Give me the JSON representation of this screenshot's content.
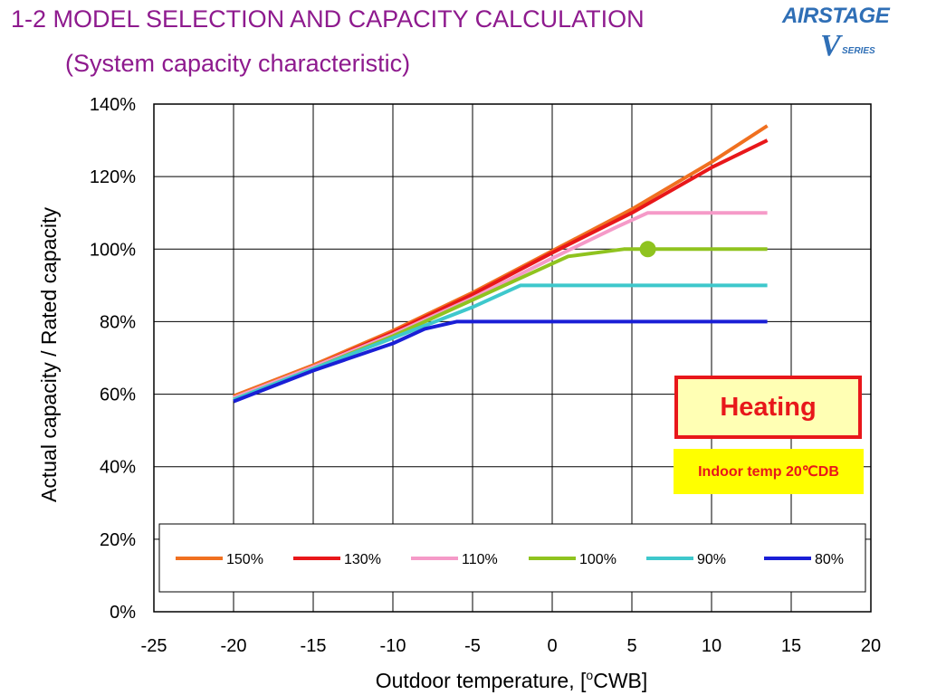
{
  "header": {
    "title": "1-2 MODEL SELECTION AND CAPACITY CALCULATION",
    "subtitle": "(System capacity characteristic)"
  },
  "logo": {
    "brand": "AIRSTAGE",
    "v": "V",
    "series": "SERIES",
    "color": "#2f6fb6"
  },
  "annotations": {
    "heating": "Heating",
    "indoor_temp": "Indoor temp 20℃DB"
  },
  "chart_data": {
    "type": "line",
    "title": "",
    "xlabel_prefix": "Outdoor temperature,   [",
    "xlabel_sup": "o",
    "xlabel_suffix": "CWB]",
    "ylabel": "Actual capacity / Rated capacity",
    "xlim": [
      -25,
      20
    ],
    "ylim": [
      0,
      140
    ],
    "xticks": [
      -25,
      -20,
      -15,
      -10,
      -5,
      0,
      5,
      10,
      15,
      20
    ],
    "xtick_labels": [
      "-25",
      "-20",
      "-15",
      "-10",
      "-5",
      "0",
      "5",
      "10",
      "15",
      "20"
    ],
    "yticks": [
      0,
      20,
      40,
      60,
      80,
      100,
      120,
      140
    ],
    "ytick_labels": [
      "0%",
      "20%",
      "40%",
      "60%",
      "80%",
      "100%",
      "120%",
      "140%"
    ],
    "grid": true,
    "legend_position": "bottom",
    "series": [
      {
        "name": "150%",
        "color": "#f07020",
        "x": [
          -20,
          -15,
          -10,
          -5,
          0,
          5,
          10,
          13.5
        ],
        "y": [
          59.5,
          68,
          77.5,
          88,
          99.5,
          111,
          124,
          134
        ]
      },
      {
        "name": "130%",
        "color": "#e8171a",
        "x": [
          -20,
          -15,
          -10,
          -5,
          0,
          5,
          10,
          13.5
        ],
        "y": [
          59,
          67.5,
          77,
          87.5,
          99,
          110,
          122.5,
          130
        ]
      },
      {
        "name": "110%",
        "color": "#f59ac8",
        "x": [
          -20,
          -15,
          -10,
          -5,
          0,
          4,
          6,
          13.5
        ],
        "y": [
          59,
          67.5,
          76.5,
          86.5,
          97.5,
          106,
          110,
          110
        ]
      },
      {
        "name": "100%",
        "color": "#8fc31f",
        "x": [
          -20,
          -15,
          -10,
          -5,
          0,
          1,
          4.5,
          13.5
        ],
        "y": [
          58.5,
          67,
          76,
          86,
          96,
          98,
          100,
          100
        ]
      },
      {
        "name": "90%",
        "color": "#3ec8cc",
        "x": [
          -20,
          -15,
          -10,
          -5,
          -2,
          13.5
        ],
        "y": [
          58.5,
          67,
          75.5,
          84,
          90,
          90
        ]
      },
      {
        "name": "80%",
        "color": "#1a1fd6",
        "x": [
          -20,
          -15,
          -10,
          -8,
          -6,
          13.5
        ],
        "y": [
          58,
          66.5,
          74,
          78,
          80,
          80
        ]
      }
    ],
    "marker": {
      "x": 6,
      "y": 100,
      "color": "#8fc31f"
    }
  }
}
